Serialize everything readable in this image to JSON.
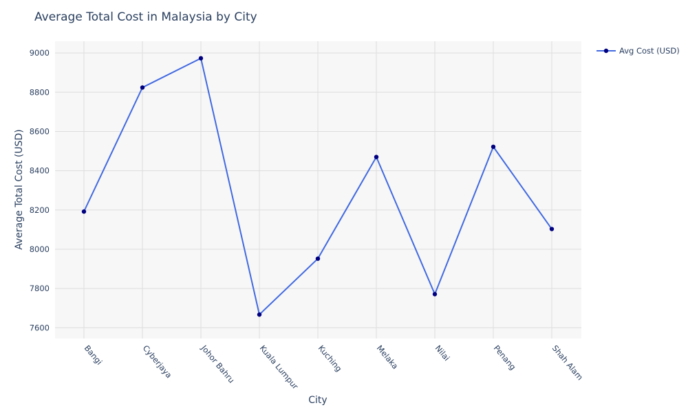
{
  "chart_data": {
    "type": "line",
    "title": "Average Total Cost in Malaysia by City",
    "xlabel": "City",
    "ylabel": "Average Total Cost (USD)",
    "categories": [
      "Bangi",
      "Cyberjaya",
      "Johor Bahru",
      "Kuala Lumpur",
      "Kuching",
      "Melaka",
      "Nilai",
      "Penang",
      "Shah Alam"
    ],
    "series": [
      {
        "name": "Avg Cost (USD)",
        "values": [
          8192,
          8824,
          8973,
          7667,
          7952,
          8470,
          7771,
          8522,
          8103
        ],
        "line_color": "#4169e1",
        "marker_color": "#000080"
      }
    ],
    "ylim": [
      7545,
      9060
    ],
    "yticks": [
      7600,
      7800,
      8000,
      8200,
      8400,
      8600,
      8800,
      9000
    ],
    "grid": true,
    "legend_position": "top-right",
    "plot_background": "#f7f7f7"
  }
}
